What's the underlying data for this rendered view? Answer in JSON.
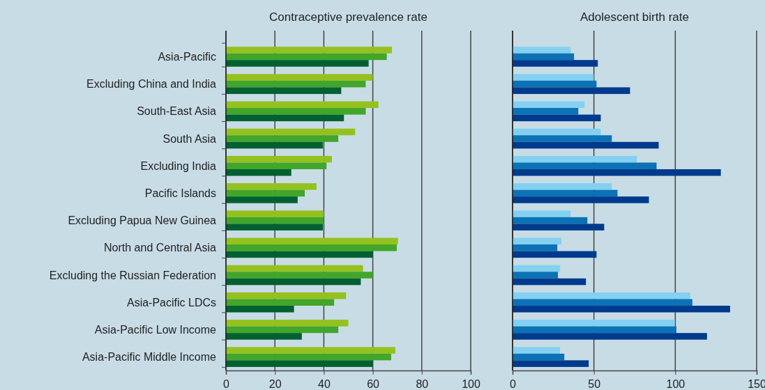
{
  "chart_data": [
    {
      "type": "bar",
      "orientation": "horizontal",
      "title": "Contraceptive prevalence rate",
      "categories": [
        "Asia-Pacific",
        "Excluding China and India",
        "South-East Asia",
        "South Asia",
        "Excluding India",
        "Pacific Islands",
        "Excluding Papua New Guinea",
        "North and Central Asia",
        "Excluding the Russian Federation",
        "Asia-Pacific LDCs",
        "Asia-Pacific Low Income",
        "Asia-Pacific Middle Income"
      ],
      "series": [
        {
          "color": "#95c11f",
          "values": [
            67.8,
            60,
            62.3,
            52.8,
            43.3,
            37,
            40,
            70.3,
            56,
            49.1,
            50,
            69.2
          ]
        },
        {
          "color": "#41a62a",
          "values": [
            65.7,
            57.1,
            57.1,
            45.9,
            41.1,
            32.2,
            40,
            69.8,
            60,
            44.2,
            45.9,
            67.5
          ]
        },
        {
          "color": "#006030",
          "values": [
            58.3,
            47.1,
            48.2,
            39.6,
            26.7,
            29.3,
            39.6,
            60,
            55.1,
            27.8,
            31,
            60
          ]
        }
      ],
      "xlim": [
        0,
        100
      ],
      "xticks": [
        0,
        20,
        40,
        60,
        80,
        100
      ],
      "grid": "x"
    },
    {
      "type": "bar",
      "orientation": "horizontal",
      "title": "Adolescent birth rate",
      "categories": [
        null,
        null,
        null,
        null,
        null,
        null,
        null,
        null,
        null,
        null,
        null,
        null
      ],
      "series": [
        {
          "color": "#84d0f0",
          "values": [
            35.7,
            49.9,
            44.3,
            54.2,
            76.5,
            61,
            35.7,
            30,
            29.2,
            109.2,
            99.7,
            29.2
          ]
        },
        {
          "color": "#0b72b5",
          "values": [
            37.8,
            51.6,
            40.4,
            61,
            88.5,
            64.5,
            46,
            27.5,
            27.9,
            110.5,
            100.7,
            31.8
          ]
        },
        {
          "color": "#003a8c",
          "values": [
            52.4,
            72.2,
            54.2,
            89.8,
            128,
            83.8,
            56.3,
            51.6,
            45.1,
            133.7,
            119.5,
            46.8
          ]
        }
      ],
      "xlim": [
        0,
        150
      ],
      "xticks": [
        0,
        50,
        100,
        150
      ],
      "grid": "x",
      "tick_labels": "x"
    }
  ]
}
